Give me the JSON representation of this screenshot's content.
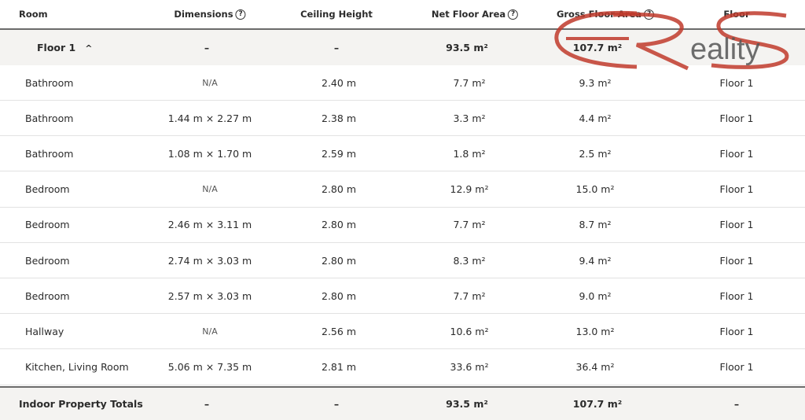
{
  "headers": {
    "room": "Room",
    "dimensions": "Dimensions",
    "ceiling": "Ceiling Height",
    "net": "Net Floor Area",
    "gross": "Gross Floor Area",
    "floor": "Floor",
    "help_icon": "?"
  },
  "floor_group": {
    "label": "Floor 1",
    "chevron": "^",
    "dimensions": "–",
    "ceiling": "–",
    "net": "93.5 m²",
    "gross": "107.7 m²",
    "expanded": true
  },
  "rows": [
    {
      "room": "Bathroom",
      "dimensions": "N/A",
      "ceiling": "2.40 m",
      "net": "7.7 m²",
      "gross": "9.3 m²",
      "floor": "Floor 1"
    },
    {
      "room": "Bathroom",
      "dimensions": "1.44 m × 2.27 m",
      "ceiling": "2.38 m",
      "net": "3.3 m²",
      "gross": "4.4 m²",
      "floor": "Floor 1"
    },
    {
      "room": "Bathroom",
      "dimensions": "1.08 m × 1.70 m",
      "ceiling": "2.59 m",
      "net": "1.8 m²",
      "gross": "2.5 m²",
      "floor": "Floor 1"
    },
    {
      "room": "Bedroom",
      "dimensions": "N/A",
      "ceiling": "2.80 m",
      "net": "12.9 m²",
      "gross": "15.0 m²",
      "floor": "Floor 1"
    },
    {
      "room": "Bedroom",
      "dimensions": "2.46 m × 3.11 m",
      "ceiling": "2.80 m",
      "net": "7.7 m²",
      "gross": "8.7 m²",
      "floor": "Floor 1"
    },
    {
      "room": "Bedroom",
      "dimensions": "2.74 m × 3.03 m",
      "ceiling": "2.80 m",
      "net": "8.3 m²",
      "gross": "9.4 m²",
      "floor": "Floor 1"
    },
    {
      "room": "Bedroom",
      "dimensions": "2.57 m × 3.03 m",
      "ceiling": "2.80 m",
      "net": "7.7 m²",
      "gross": "9.0 m²",
      "floor": "Floor 1"
    },
    {
      "room": "Hallway",
      "dimensions": "N/A",
      "ceiling": "2.56 m",
      "net": "10.6 m²",
      "gross": "13.0 m²",
      "floor": "Floor 1"
    },
    {
      "room": "Kitchen, Living Room",
      "dimensions": "5.06 m × 7.35 m",
      "ceiling": "2.81 m",
      "net": "33.6 m²",
      "gross": "36.4 m²",
      "floor": "Floor 1"
    }
  ],
  "totals": {
    "label": "Indoor Property Totals",
    "dimensions": "–",
    "ceiling": "–",
    "net": "93.5 m²",
    "gross": "107.7 m²",
    "floor": "–"
  },
  "watermark": {
    "text": "ERS Reality",
    "colors": {
      "red": "#c0392b",
      "gray": "#555555"
    }
  }
}
